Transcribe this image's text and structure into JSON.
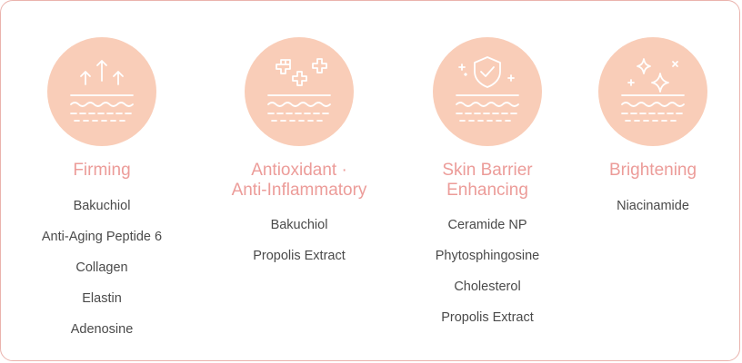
{
  "categories": [
    {
      "title": "Firming",
      "icon": "arrows-up-icon",
      "ingredients": [
        "Bakuchiol",
        "Anti-Aging Peptide 6",
        "Collagen",
        "Elastin",
        "Adenosine"
      ]
    },
    {
      "title": "Antioxidant · Anti-Inflammatory",
      "title_lines": [
        "Antioxidant ·",
        "Anti-Inflammatory"
      ],
      "icon": "plus-crosses-icon",
      "ingredients": [
        "Bakuchiol",
        "Propolis Extract"
      ]
    },
    {
      "title": "Skin Barrier Enhancing",
      "title_lines": [
        "Skin Barrier",
        "Enhancing"
      ],
      "icon": "shield-check-icon",
      "ingredients": [
        "Ceramide NP",
        "Phytosphingosine",
        "Cholesterol",
        "Propolis Extract"
      ]
    },
    {
      "title": "Brightening",
      "icon": "sparkles-icon",
      "ingredients": [
        "Niacinamide"
      ]
    }
  ],
  "colors": {
    "circle": "#f9cdb8",
    "accent": "#ec9c99",
    "text": "#4a4a4a",
    "border": "#eab3ad",
    "icon_stroke": "#ffffff"
  }
}
